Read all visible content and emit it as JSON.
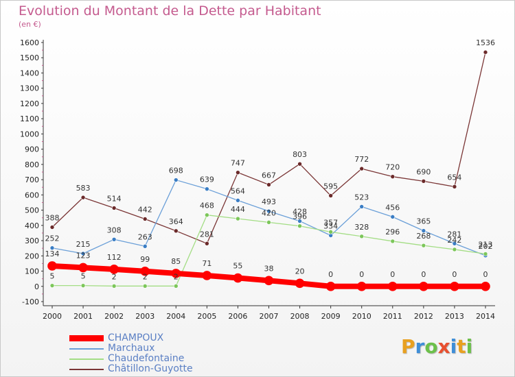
{
  "title": "Evolution du Montant de la Dette par Habitant",
  "subtitle": "(en €)",
  "logo": {
    "text": "Proxiti",
    "colors": [
      "#e8a020",
      "#3e8ed8",
      "#6cc04a",
      "#e85030",
      "#3e8ed8",
      "#e8a020",
      "#6cc04a"
    ]
  },
  "chart_data": {
    "type": "line",
    "x": [
      2000,
      2001,
      2002,
      2003,
      2004,
      2005,
      2006,
      2007,
      2008,
      2009,
      2010,
      2011,
      2012,
      2013,
      2014
    ],
    "ylim": [
      -100,
      1600
    ],
    "yticks": [
      -100,
      0,
      100,
      200,
      300,
      400,
      500,
      600,
      700,
      800,
      900,
      1000,
      1100,
      1200,
      1300,
      1400,
      1500,
      1600
    ],
    "grid": false,
    "legend_position": "bottom-left",
    "series": [
      {
        "name": "CHAMPOUX",
        "color": "#ff0000",
        "marker": "#ff0000",
        "width": 8,
        "values": [
          134,
          123,
          112,
          99,
          85,
          71,
          55,
          38,
          20,
          0,
          0,
          0,
          0,
          0,
          0
        ]
      },
      {
        "name": "Marchaux",
        "color": "#6a9fd8",
        "marker": "#3a7dc4",
        "width": 1.3,
        "values": [
          252,
          215,
          308,
          263,
          698,
          639,
          564,
          493,
          428,
          334,
          523,
          456,
          365,
          281,
          202
        ]
      },
      {
        "name": "Chaudefontaine",
        "color": "#a3dd84",
        "marker": "#7cc65a",
        "width": 1.3,
        "values": [
          5,
          5,
          2,
          2,
          2,
          468,
          444,
          420,
          396,
          357,
          328,
          296,
          268,
          242,
          213
        ]
      },
      {
        "name": "Châtillon-Guyotte",
        "color": "#7a3535",
        "marker": "#6b2a2a",
        "width": 1.3,
        "values": [
          388,
          583,
          514,
          442,
          364,
          281,
          747,
          667,
          803,
          595,
          772,
          720,
          690,
          654,
          1536
        ]
      }
    ]
  }
}
